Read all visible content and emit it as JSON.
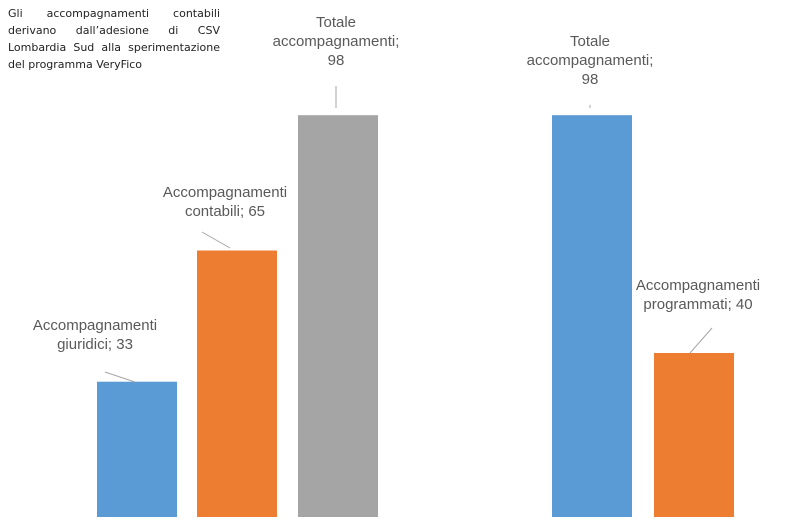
{
  "note": {
    "text": "Gli accompagnamenti contabili derivano dall’adesione di CSV Lombardia Sud alla sperimentazione del programma VeryFico"
  },
  "chart_data": [
    {
      "type": "bar",
      "categories": [
        "Accompagnamenti giuridici",
        "Accompagnamenti contabili",
        "Totale accompagnamenti"
      ],
      "values": [
        33,
        65,
        98
      ],
      "colors": [
        "#5b9bd5",
        "#ed7d31",
        "#a5a5a5"
      ],
      "labels": [
        [
          "Accompagnamenti",
          "giuridici; 33"
        ],
        [
          "Accompagnamenti",
          "contabili; 65"
        ],
        [
          "Totale",
          "accompagnamenti;",
          "98"
        ]
      ],
      "ylim": [
        0,
        100
      ],
      "grid": false,
      "legend": "none"
    },
    {
      "type": "bar",
      "categories": [
        "Totale accompagnamenti",
        "Accompagnamenti programmati"
      ],
      "values": [
        98,
        40
      ],
      "colors": [
        "#5b9bd5",
        "#ed7d31"
      ],
      "labels": [
        [
          "Totale",
          "accompagnamenti;",
          "98"
        ],
        [
          "Accompagnamenti",
          "programmati; 40"
        ]
      ],
      "ylim": [
        0,
        100
      ],
      "grid": false,
      "legend": "none"
    }
  ]
}
